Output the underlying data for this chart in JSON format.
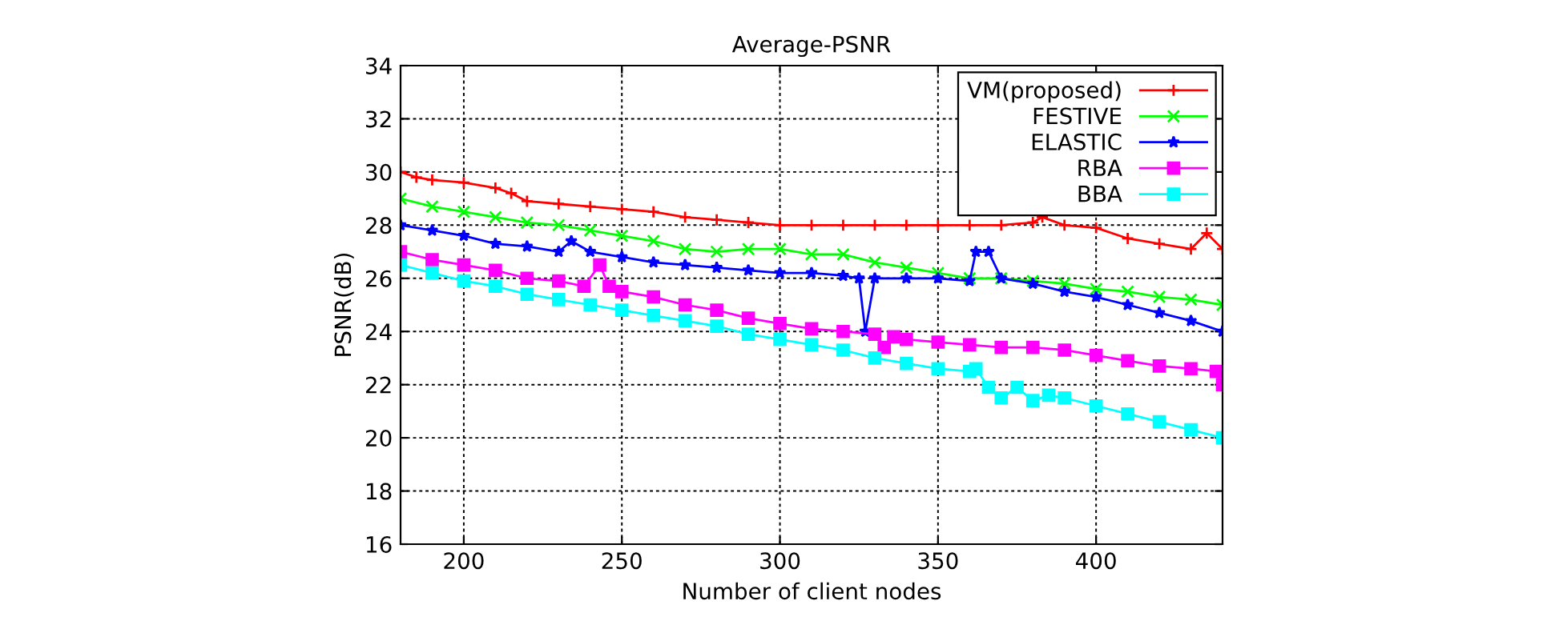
{
  "chart_data": {
    "type": "line",
    "title": "Average-PSNR",
    "xlabel": "Number of client nodes",
    "ylabel": "PSNR(dB)",
    "xlim": [
      180,
      440
    ],
    "xticks": [
      200,
      250,
      300,
      350,
      400
    ],
    "ylim": [
      16,
      34
    ],
    "yticks": [
      16,
      18,
      20,
      22,
      24,
      26,
      28,
      30,
      32,
      34
    ],
    "grid": true,
    "legend": "top right",
    "line_style": "solid",
    "series": [
      {
        "name": "VM(proposed)",
        "color": "#ff0000",
        "marker": "cross",
        "x": [
          180,
          185,
          190,
          200,
          210,
          215,
          220,
          230,
          240,
          250,
          260,
          270,
          280,
          290,
          300,
          310,
          320,
          330,
          340,
          350,
          360,
          370,
          380,
          383,
          390,
          400,
          410,
          420,
          430,
          435,
          440
        ],
        "values": [
          30,
          29.8,
          29.7,
          29.6,
          29.4,
          29.2,
          28.9,
          28.8,
          28.7,
          28.6,
          28.5,
          28.3,
          28.2,
          28.1,
          28.0,
          28.0,
          28.0,
          28.0,
          28.0,
          28.0,
          28.0,
          28.0,
          28.1,
          28.3,
          28.0,
          27.9,
          27.5,
          27.3,
          27.1,
          27.7,
          27.1
        ]
      },
      {
        "name": "FESTIVE",
        "color": "#00ff00",
        "marker": "x",
        "x": [
          180,
          190,
          200,
          210,
          220,
          230,
          240,
          250,
          260,
          270,
          280,
          290,
          300,
          310,
          320,
          330,
          340,
          350,
          360,
          370,
          380,
          390,
          400,
          410,
          420,
          430,
          440
        ],
        "values": [
          29,
          28.7,
          28.5,
          28.3,
          28.1,
          28.0,
          27.8,
          27.6,
          27.4,
          27.1,
          27.0,
          27.1,
          27.1,
          26.9,
          26.9,
          26.6,
          26.4,
          26.2,
          26.0,
          26.0,
          25.9,
          25.8,
          25.6,
          25.5,
          25.3,
          25.2,
          25.0
        ]
      },
      {
        "name": "ELASTIC",
        "color": "#0000ff",
        "marker": "star",
        "x": [
          180,
          190,
          200,
          210,
          220,
          230,
          234,
          240,
          250,
          260,
          270,
          280,
          290,
          300,
          310,
          320,
          325,
          327,
          330,
          340,
          350,
          360,
          362,
          366,
          370,
          380,
          390,
          400,
          410,
          420,
          430,
          440
        ],
        "values": [
          28,
          27.8,
          27.6,
          27.3,
          27.2,
          27.0,
          27.4,
          27.0,
          26.8,
          26.6,
          26.5,
          26.4,
          26.3,
          26.2,
          26.2,
          26.1,
          26.0,
          24.0,
          26.0,
          26.0,
          26.0,
          25.9,
          27.0,
          27.0,
          26.0,
          25.8,
          25.5,
          25.3,
          25.0,
          24.7,
          24.4,
          24.0
        ]
      },
      {
        "name": "RBA",
        "color": "#ff00ff",
        "marker": "square",
        "x": [
          180,
          190,
          200,
          210,
          220,
          230,
          238,
          243,
          246,
          250,
          260,
          270,
          280,
          290,
          300,
          310,
          320,
          330,
          333,
          336,
          340,
          350,
          360,
          370,
          380,
          390,
          400,
          410,
          420,
          430,
          438,
          440
        ],
        "values": [
          27,
          26.7,
          26.5,
          26.3,
          26.0,
          25.9,
          25.7,
          26.5,
          25.7,
          25.5,
          25.3,
          25.0,
          24.8,
          24.5,
          24.3,
          24.1,
          24.0,
          23.9,
          23.4,
          23.8,
          23.7,
          23.6,
          23.5,
          23.4,
          23.4,
          23.3,
          23.1,
          22.9,
          22.7,
          22.6,
          22.5,
          22.0
        ]
      },
      {
        "name": "BBA",
        "color": "#00ffff",
        "marker": "square",
        "x": [
          180,
          190,
          200,
          210,
          220,
          230,
          240,
          250,
          260,
          270,
          280,
          290,
          300,
          310,
          320,
          330,
          340,
          350,
          360,
          362,
          366,
          370,
          375,
          380,
          385,
          390,
          400,
          410,
          420,
          430,
          440
        ],
        "values": [
          26.5,
          26.2,
          25.9,
          25.7,
          25.4,
          25.2,
          25.0,
          24.8,
          24.6,
          24.4,
          24.2,
          23.9,
          23.7,
          23.5,
          23.3,
          23.0,
          22.8,
          22.6,
          22.5,
          22.6,
          21.9,
          21.5,
          21.9,
          21.4,
          21.6,
          21.5,
          21.2,
          20.9,
          20.6,
          20.3,
          20.0
        ]
      }
    ]
  }
}
